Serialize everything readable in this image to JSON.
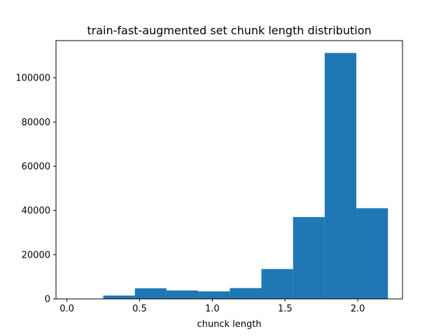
{
  "chart_data": {
    "type": "bar",
    "title": "train-fast-augmented set chunk length distribution",
    "xlabel": "chunck length",
    "ylabel": "",
    "bin_edges": [
      0.25,
      0.4675,
      0.685,
      0.9025,
      1.12,
      1.3375,
      1.555,
      1.7725,
      1.99,
      2.2075
    ],
    "values": [
      1500,
      4800,
      3800,
      3400,
      4900,
      13500,
      37000,
      111200,
      41000
    ],
    "xlim": [
      -0.075,
      2.3075
    ],
    "ylim": [
      0,
      116800
    ],
    "x_ticks": [
      0.0,
      0.5,
      1.0,
      1.5,
      2.0
    ],
    "x_tick_labels": [
      "0.0",
      "0.5",
      "1.0",
      "1.5",
      "2.0"
    ],
    "y_ticks": [
      0,
      20000,
      40000,
      60000,
      80000,
      100000
    ],
    "y_tick_labels": [
      "0",
      "20000",
      "40000",
      "60000",
      "80000",
      "100000"
    ],
    "bar_color": "#1f77b4",
    "grid": false,
    "legend": "none"
  }
}
